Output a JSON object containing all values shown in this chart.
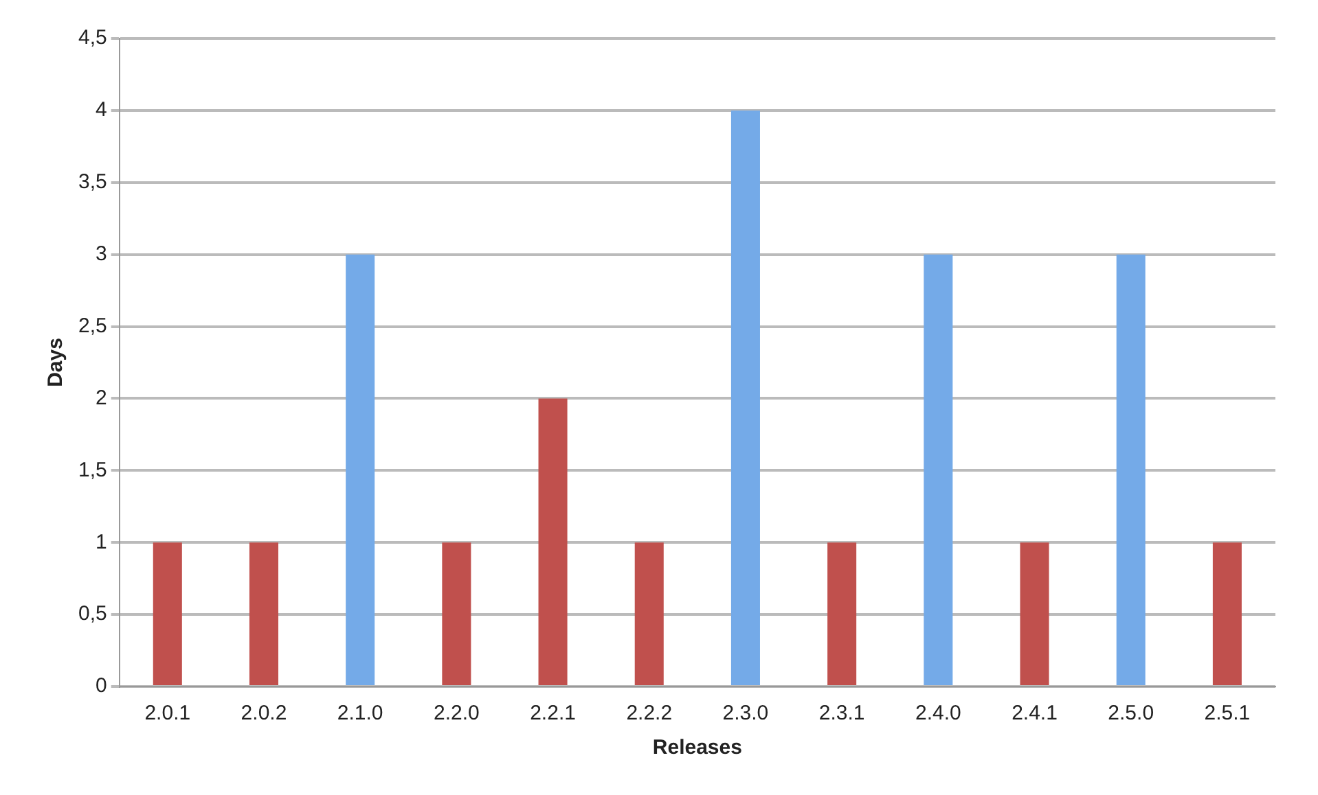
{
  "chart_data": {
    "type": "bar",
    "xlabel": "Releases",
    "ylabel": "Days",
    "categories": [
      "2.0.1",
      "2.0.2",
      "2.1.0",
      "2.2.0",
      "2.2.1",
      "2.2.2",
      "2.3.0",
      "2.3.1",
      "2.4.0",
      "2.4.1",
      "2.5.0",
      "2.5.1"
    ],
    "values": [
      1,
      1,
      3,
      1,
      2,
      1,
      4,
      1,
      3,
      1,
      3,
      1
    ],
    "colors": [
      "#c0504d",
      "#c0504d",
      "#74aae8",
      "#c0504d",
      "#c0504d",
      "#c0504d",
      "#74aae8",
      "#c0504d",
      "#74aae8",
      "#c0504d",
      "#74aae8",
      "#c0504d"
    ],
    "ylim": [
      0,
      4.5
    ],
    "yticks": [
      0,
      {
        "value": 0.5,
        "label": "0,5"
      },
      1,
      {
        "value": 1.5,
        "label": "1,5"
      },
      2,
      {
        "value": 2.5,
        "label": "2,5"
      },
      3,
      {
        "value": 3.5,
        "label": "3,5"
      },
      4,
      {
        "value": 4.5,
        "label": "4,5"
      }
    ],
    "grid": "y",
    "legend": false
  }
}
